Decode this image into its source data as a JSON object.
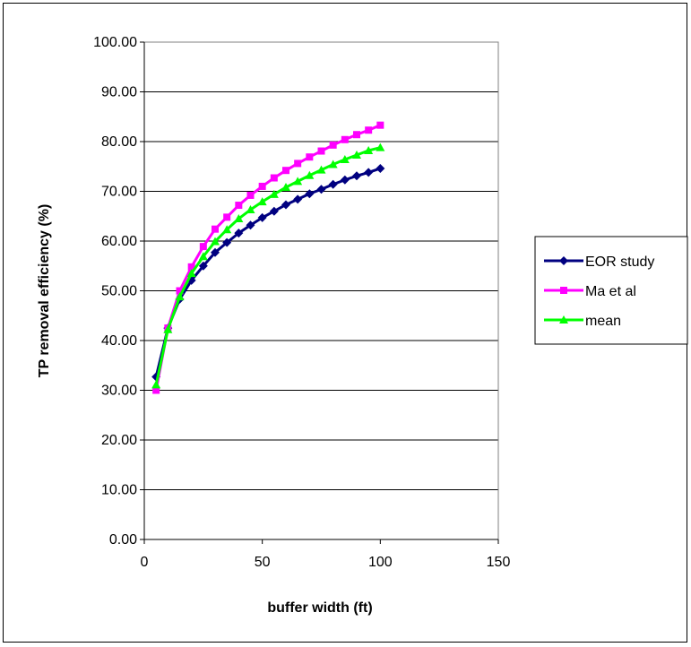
{
  "chart_data": {
    "type": "line",
    "title": "",
    "xlabel": "buffer width (ft)",
    "ylabel": "TP removal efficiency (%)",
    "xlim": [
      0,
      150
    ],
    "ylim": [
      0,
      100
    ],
    "x_ticks": [
      0,
      50,
      100,
      150
    ],
    "y_ticks": [
      "0.00",
      "10.00",
      "20.00",
      "30.00",
      "40.00",
      "50.00",
      "60.00",
      "70.00",
      "80.00",
      "90.00",
      "100.00"
    ],
    "grid": "horizontal major gridlines",
    "legend_position": "right",
    "x": [
      5,
      10,
      15,
      20,
      25,
      30,
      35,
      40,
      45,
      50,
      55,
      60,
      65,
      70,
      75,
      80,
      85,
      90,
      95,
      100
    ],
    "series": [
      {
        "name": "EOR study",
        "color": "#000080",
        "marker": "diamond",
        "values": [
          32.7,
          42.5,
          48.3,
          52.1,
          55.0,
          57.7,
          59.7,
          61.6,
          63.2,
          64.7,
          66.0,
          67.3,
          68.4,
          69.5,
          70.4,
          71.4,
          72.3,
          73.1,
          73.8,
          74.6
        ]
      },
      {
        "name": "Ma et al",
        "color": "#FF00FF",
        "marker": "square",
        "values": [
          30.0,
          42.5,
          50.0,
          54.8,
          58.9,
          62.4,
          64.8,
          67.2,
          69.2,
          71.0,
          72.7,
          74.2,
          75.6,
          76.9,
          78.1,
          79.3,
          80.4,
          81.4,
          82.3,
          83.3
        ]
      },
      {
        "name": "mean",
        "color": "#00FF00",
        "marker": "triangle",
        "values": [
          31.1,
          42.2,
          48.8,
          53.5,
          56.9,
          59.9,
          62.3,
          64.5,
          66.3,
          67.9,
          69.4,
          70.8,
          72.0,
          73.2,
          74.3,
          75.4,
          76.4,
          77.3,
          78.2,
          78.8
        ]
      }
    ]
  }
}
